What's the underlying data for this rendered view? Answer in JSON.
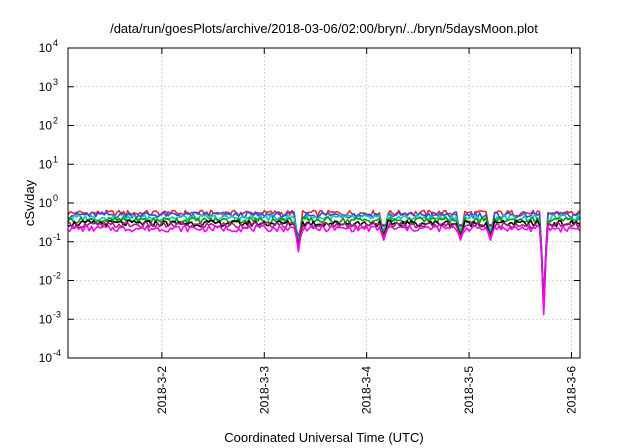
{
  "chart_data": {
    "type": "line",
    "title": "/data/run/goesPlots/archive/2018-03-06/02:00/bryn/../bryn/5daysMoon.plot",
    "xlabel": "Coordinated Universal Time (UTC)",
    "ylabel": "cSv/day",
    "yscale": "log",
    "ylim": [
      0.0001,
      10000
    ],
    "xlim": [
      "2018-03-01T02:00",
      "2018-03-06T02:00"
    ],
    "grid": true,
    "y_ticks": [
      {
        "base": "10",
        "exp": "4",
        "value": 10000
      },
      {
        "base": "10",
        "exp": "3",
        "value": 1000
      },
      {
        "base": "10",
        "exp": "2",
        "value": 100
      },
      {
        "base": "10",
        "exp": "1",
        "value": 10
      },
      {
        "base": "10",
        "exp": "0",
        "value": 1
      },
      {
        "base": "10",
        "exp": "-1",
        "value": 0.1
      },
      {
        "base": "10",
        "exp": "-2",
        "value": 0.01
      },
      {
        "base": "10",
        "exp": "-3",
        "value": 0.001
      },
      {
        "base": "10",
        "exp": "-4",
        "value": 0.0001
      }
    ],
    "x_ticks": [
      {
        "label": "2018-3-2",
        "value": "2018-03-02T00:00"
      },
      {
        "label": "2018-3-3",
        "value": "2018-03-03T00:00"
      },
      {
        "label": "2018-3-4",
        "value": "2018-03-04T00:00"
      },
      {
        "label": "2018-3-5",
        "value": "2018-03-05T00:00"
      },
      {
        "label": "2018-3-6",
        "value": "2018-03-06T00:00"
      }
    ],
    "dips": [
      {
        "time": "2018-03-03T08:00",
        "factor": 0.25
      },
      {
        "time": "2018-03-04T04:00",
        "factor": 0.5
      },
      {
        "time": "2018-03-04T22:00",
        "factor": 0.5
      },
      {
        "time": "2018-03-05T05:00",
        "factor": 0.5
      },
      {
        "time": "2018-03-05T17:30",
        "factor": 0.006
      }
    ],
    "series": [
      {
        "color": "#e8292d",
        "baseline": 0.55
      },
      {
        "color": "#3b46e0",
        "baseline": 0.5
      },
      {
        "color": "#00c8c8",
        "baseline": 0.42
      },
      {
        "color": "#00a000",
        "baseline": 0.36
      },
      {
        "color": "#000000",
        "baseline": 0.3
      },
      {
        "color": "#9a2a6a",
        "baseline": 0.27
      },
      {
        "color": "#ff00ff",
        "baseline": 0.22
      }
    ]
  }
}
